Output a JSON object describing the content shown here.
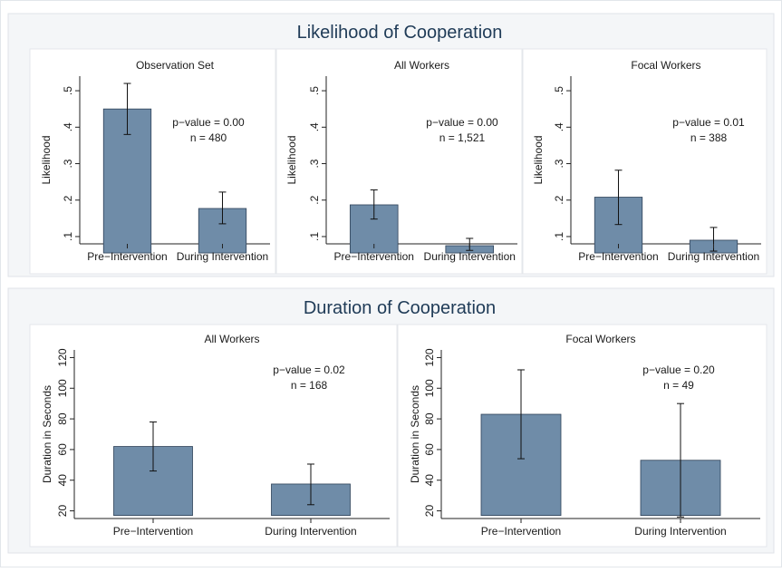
{
  "colors": {
    "bar_fill": "#6f8ca8",
    "bar_stroke": "#2e4157",
    "panel_bg": "#ffffff",
    "outer_bg": "#f4f6f8",
    "title_text": "#1f3b57",
    "text": "#1a1a1a"
  },
  "chart_data": [
    {
      "group_title": "Likelihood of Cooperation",
      "type": "bar",
      "title": "Observation Set",
      "ylabel": "Likelihood",
      "ylim": [
        0.08,
        0.54
      ],
      "yticks": [
        ".1",
        ".2",
        ".3",
        ".4",
        ".5"
      ],
      "ytick_values": [
        0.1,
        0.2,
        0.3,
        0.4,
        0.5
      ],
      "categories": [
        "Pre−Intervention",
        "During Intervention"
      ],
      "values": [
        0.45,
        0.177
      ],
      "error_low": [
        0.38,
        0.135
      ],
      "error_high": [
        0.52,
        0.222
      ],
      "base": 0.055,
      "annotations": [
        "p−value = 0.00",
        "n = 480"
      ]
    },
    {
      "group_title": "Likelihood of Cooperation",
      "type": "bar",
      "title": "All Workers",
      "ylabel": "Likelihood",
      "ylim": [
        0.08,
        0.54
      ],
      "yticks": [
        ".1",
        ".2",
        ".3",
        ".4",
        ".5"
      ],
      "ytick_values": [
        0.1,
        0.2,
        0.3,
        0.4,
        0.5
      ],
      "categories": [
        "Pre−Intervention",
        "During Intervention"
      ],
      "values": [
        0.187,
        0.075
      ],
      "error_low": [
        0.148,
        0.062
      ],
      "error_high": [
        0.228,
        0.095
      ],
      "base": 0.055,
      "annotations": [
        "p−value = 0.00",
        "n = 1,521"
      ]
    },
    {
      "group_title": "Likelihood of Cooperation",
      "type": "bar",
      "title": "Focal Workers",
      "ylabel": "Likelihood",
      "ylim": [
        0.08,
        0.54
      ],
      "yticks": [
        ".1",
        ".2",
        ".3",
        ".4",
        ".5"
      ],
      "ytick_values": [
        0.1,
        0.2,
        0.3,
        0.4,
        0.5
      ],
      "categories": [
        "Pre−Intervention",
        "During Intervention"
      ],
      "values": [
        0.208,
        0.09
      ],
      "error_low": [
        0.133,
        0.06
      ],
      "error_high": [
        0.282,
        0.125
      ],
      "base": 0.055,
      "annotations": [
        "p−value = 0.01",
        "n = 388"
      ]
    },
    {
      "group_title": "Duration of Cooperation",
      "type": "bar",
      "title": "All Workers",
      "ylabel": "Duration in Seconds",
      "ylim": [
        15,
        125
      ],
      "yticks": [
        "20",
        "40",
        "60",
        "80",
        "100",
        "120"
      ],
      "ytick_values": [
        20,
        40,
        60,
        80,
        100,
        120
      ],
      "categories": [
        "Pre−Intervention",
        "During Intervention"
      ],
      "values": [
        62,
        37.5
      ],
      "error_low": [
        46,
        24
      ],
      "error_high": [
        78,
        50.5
      ],
      "base": 17,
      "annotations": [
        "p−value = 0.02",
        "n = 168"
      ]
    },
    {
      "group_title": "Duration of Cooperation",
      "type": "bar",
      "title": "Focal Workers",
      "ylabel": "Duration in Seconds",
      "ylim": [
        15,
        125
      ],
      "yticks": [
        "20",
        "40",
        "60",
        "80",
        "100",
        "120"
      ],
      "ytick_values": [
        20,
        40,
        60,
        80,
        100,
        120
      ],
      "categories": [
        "Pre−Intervention",
        "During Intervention"
      ],
      "values": [
        83,
        53
      ],
      "error_low": [
        54,
        16
      ],
      "error_high": [
        112,
        90
      ],
      "base": 17,
      "annotations": [
        "p−value = 0.20",
        "n = 49"
      ]
    }
  ],
  "figure": {
    "top_title": "Likelihood of Cooperation",
    "bottom_title": "Duration of Cooperation"
  }
}
